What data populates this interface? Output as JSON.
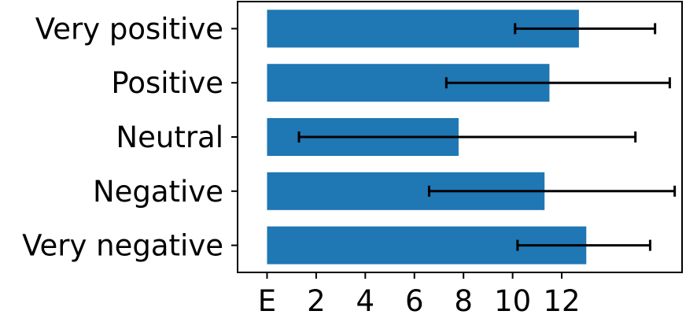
{
  "chart_data": {
    "type": "bar",
    "orientation": "horizontal",
    "categories": [
      "Very negative",
      "Negative",
      "Neutral",
      "Positive",
      "Very positive"
    ],
    "values": [
      13.0,
      11.3,
      7.8,
      11.5,
      12.7
    ],
    "error_low": [
      10.2,
      6.6,
      1.3,
      7.3,
      10.1
    ],
    "error_high": [
      15.6,
      16.6,
      15.0,
      16.4,
      15.8
    ],
    "xlim": [
      -1.2,
      16.9
    ],
    "xticks": [
      0,
      2,
      4,
      6,
      8,
      10,
      12
    ],
    "xtick_labels": [
      "E",
      "2",
      "4",
      "6",
      "8",
      "10",
      "12"
    ],
    "bar_color": "#1f77b4",
    "error_color": "#000000",
    "grid": false,
    "legend": "none"
  }
}
